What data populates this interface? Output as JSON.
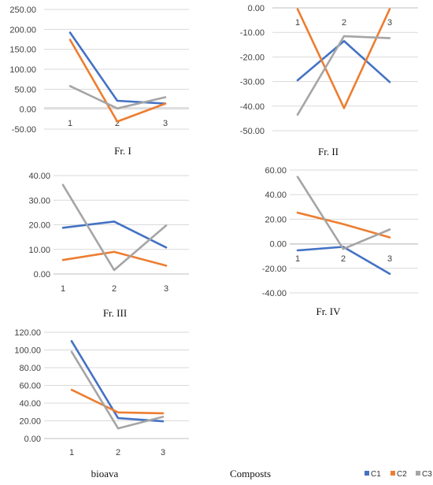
{
  "colors": {
    "C1": "#4472c4",
    "C2": "#ed7d31",
    "C3": "#a5a5a5",
    "grid": "#d9d9d9"
  },
  "caption": "Composts",
  "chart_data": [
    {
      "type": "line",
      "title": "Fr. I",
      "categories": [
        "1",
        "2",
        "3"
      ],
      "ylim": [
        -50,
        250
      ],
      "ystep": 50,
      "yticks": [
        "-50.00",
        "0.00",
        "50.00",
        "100.00",
        "150.00",
        "200.00",
        "250.00"
      ],
      "grid": true,
      "series": [
        {
          "name": "C1",
          "values": [
            192,
            21,
            14
          ]
        },
        {
          "name": "C2",
          "values": [
            174,
            -31,
            14
          ]
        },
        {
          "name": "C3",
          "values": [
            58,
            2,
            30
          ]
        }
      ]
    },
    {
      "type": "line",
      "title": "Fr. II",
      "categories": [
        "1",
        "2",
        "3"
      ],
      "ylim": [
        -50,
        0
      ],
      "ystep": 10,
      "yticks": [
        "-50.00",
        "-40.00",
        "-30.00",
        "-20.00",
        "-10.00",
        "0.00"
      ],
      "grid": true,
      "series": [
        {
          "name": "C1",
          "values": [
            -29.5,
            -13.5,
            -30.2
          ]
        },
        {
          "name": "C2",
          "values": [
            -0.5,
            -40.8,
            -0.5
          ]
        },
        {
          "name": "C3",
          "values": [
            -43.5,
            -11.5,
            -12.3
          ]
        }
      ]
    },
    {
      "type": "line",
      "title": "Fr. III",
      "categories": [
        "1",
        "2",
        "3"
      ],
      "ylim": [
        0,
        40
      ],
      "ystep": 10,
      "yticks": [
        "0.00",
        "10.00",
        "20.00",
        "30.00",
        "40.00"
      ],
      "grid": true,
      "series": [
        {
          "name": "C1",
          "values": [
            18.8,
            21.3,
            10.8
          ]
        },
        {
          "name": "C2",
          "values": [
            5.7,
            9.0,
            3.4
          ]
        },
        {
          "name": "C3",
          "values": [
            36.2,
            1.6,
            19.7
          ]
        }
      ]
    },
    {
      "type": "line",
      "title": "Fr. IV",
      "categories": [
        "1",
        "2",
        "3"
      ],
      "ylim": [
        -40,
        60
      ],
      "ystep": 20,
      "yticks": [
        "-40.00",
        "-20.00",
        "0.00",
        "20.00",
        "40.00",
        "60.00"
      ],
      "grid": true,
      "series": [
        {
          "name": "C1",
          "values": [
            -5.4,
            -2.5,
            -24.5
          ]
        },
        {
          "name": "C2",
          "values": [
            25.3,
            16,
            5.2
          ]
        },
        {
          "name": "C3",
          "values": [
            54.5,
            -4.2,
            11.6
          ]
        }
      ]
    },
    {
      "type": "line",
      "title": "bioava",
      "categories": [
        "1",
        "2",
        "3"
      ],
      "ylim": [
        0,
        120
      ],
      "ystep": 20,
      "yticks": [
        "0.00",
        "20.00",
        "40.00",
        "60.00",
        "80.00",
        "100.00",
        "120.00"
      ],
      "grid": true,
      "series": [
        {
          "name": "C1",
          "values": [
            110,
            23,
            19.5
          ]
        },
        {
          "name": "C2",
          "values": [
            55,
            29.5,
            28.5
          ]
        },
        {
          "name": "C3",
          "values": [
            98,
            11.5,
            24.5
          ]
        }
      ]
    }
  ],
  "legend": [
    {
      "label": "C1",
      "color": "#4472c4"
    },
    {
      "label": "C2",
      "color": "#ed7d31"
    },
    {
      "label": "C3",
      "color": "#a5a5a5"
    }
  ]
}
